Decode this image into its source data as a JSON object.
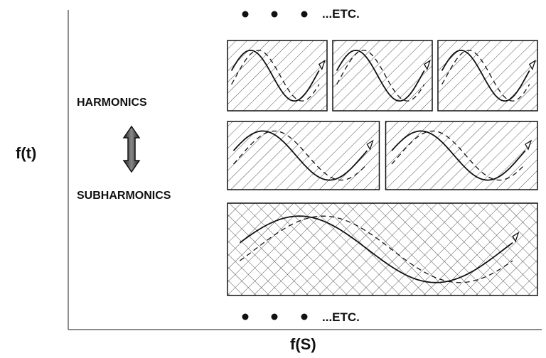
{
  "axes": {
    "y_label": "f(t)",
    "x_label": "f(S)"
  },
  "labels": {
    "harmonics": "HARMONICS",
    "subharmonics": "SUBHARMONICS",
    "etc_top": "...ETC.",
    "etc_bottom": "...ETC."
  },
  "rows": [
    {
      "panels": 3,
      "pattern": "diagonal-hatch",
      "wave_cycles": 1
    },
    {
      "panels": 2,
      "pattern": "diagonal-hatch",
      "wave_cycles": 1
    },
    {
      "panels": 1,
      "pattern": "cross-hatch",
      "wave_cycles": 1
    }
  ],
  "colors": {
    "ink": "#111111",
    "hatch": "#555555",
    "background": "#ffffff"
  }
}
